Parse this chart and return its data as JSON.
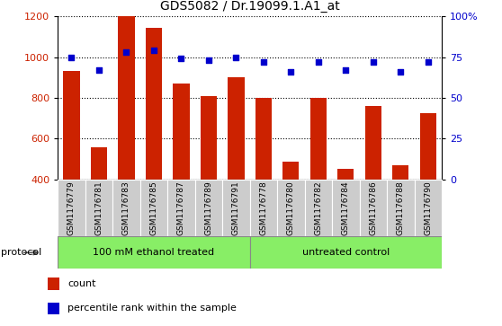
{
  "title": "GDS5082 / Dr.19099.1.A1_at",
  "samples": [
    "GSM1176779",
    "GSM1176781",
    "GSM1176783",
    "GSM1176785",
    "GSM1176787",
    "GSM1176789",
    "GSM1176791",
    "GSM1176778",
    "GSM1176780",
    "GSM1176782",
    "GSM1176784",
    "GSM1176786",
    "GSM1176788",
    "GSM1176790"
  ],
  "counts": [
    930,
    555,
    1200,
    1145,
    868,
    810,
    903,
    798,
    487,
    800,
    453,
    760,
    468,
    725
  ],
  "percentiles": [
    75,
    67,
    78,
    79,
    74,
    73,
    75,
    72,
    66,
    72,
    67,
    72,
    66,
    72
  ],
  "group1_label": "100 mM ethanol treated",
  "group2_label": "untreated control",
  "group1_count": 7,
  "group2_count": 7,
  "bar_color": "#cc2200",
  "dot_color": "#0000cc",
  "group_color": "#88ee66",
  "tick_bg_color": "#cccccc",
  "ylim_left": [
    400,
    1200
  ],
  "ylim_right": [
    0,
    100
  ],
  "yticks_left": [
    400,
    600,
    800,
    1000,
    1200
  ],
  "yticks_right": [
    0,
    25,
    50,
    75,
    100
  ],
  "ytick_labels_right": [
    "0",
    "25",
    "50",
    "75",
    "100%"
  ]
}
